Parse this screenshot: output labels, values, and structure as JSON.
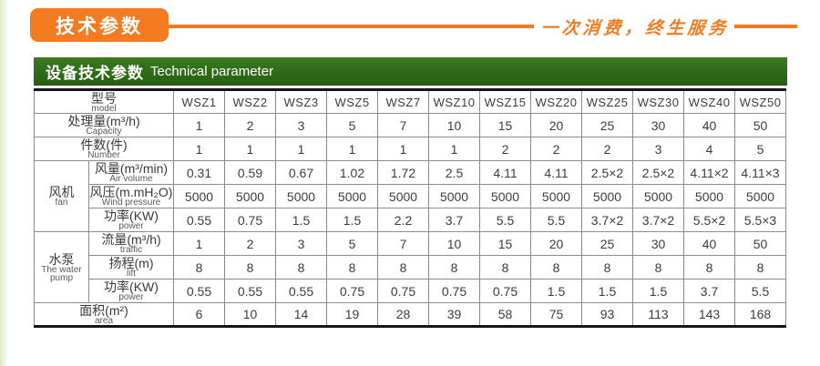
{
  "header": {
    "badge_label": "技术参数",
    "slogan": "一次消费，终生服务"
  },
  "section": {
    "title_zh": "设备技术参数",
    "title_en": "Technical parameter"
  },
  "colors": {
    "accent_orange": "#f47b20",
    "header_green": "#2e6b17",
    "table_frame": "#151515",
    "table_border": "#8c8c8c",
    "text": "#3d3d3d"
  },
  "table": {
    "model_header": {
      "zh": "型号",
      "en": "model"
    },
    "models": [
      "WSZ1",
      "WSZ2",
      "WSZ3",
      "WSZ5",
      "WSZ7",
      "WSZ10",
      "WSZ15",
      "WSZ20",
      "WSZ25",
      "WSZ30",
      "WSZ40",
      "WSZ50"
    ],
    "groups": {
      "fan": {
        "zh": "风机",
        "en": "fan",
        "rowspan": 3
      },
      "pump": {
        "zh": "水泵",
        "en": "The water pump",
        "rowspan": 3
      }
    },
    "rows": [
      {
        "id": "capacity",
        "group": null,
        "zh": "处理量(m³/h)",
        "en": "Capacity",
        "values": [
          "1",
          "2",
          "3",
          "5",
          "7",
          "10",
          "15",
          "20",
          "25",
          "30",
          "40",
          "50"
        ]
      },
      {
        "id": "number",
        "group": null,
        "zh": "件数(件)",
        "en": "Number",
        "values": [
          "1",
          "1",
          "1",
          "1",
          "1",
          "1",
          "2",
          "2",
          "2",
          "3",
          "4",
          "5"
        ]
      },
      {
        "id": "air-volume",
        "group": "fan",
        "zh": "风量(m³/min)",
        "en": "Air volume",
        "values": [
          "0.31",
          "0.59",
          "0.67",
          "1.02",
          "1.72",
          "2.5",
          "4.11",
          "4.11",
          "2.5×2",
          "2.5×2",
          "4.11×2",
          "4.11×3"
        ]
      },
      {
        "id": "wind-pressure",
        "group": "fan",
        "zh": "风压(m.mH₂O)",
        "en": "Wind pressure",
        "values": [
          "5000",
          "5000",
          "5000",
          "5000",
          "5000",
          "5000",
          "5000",
          "5000",
          "5000",
          "5000",
          "5000",
          "5000"
        ]
      },
      {
        "id": "fan-power",
        "group": "fan",
        "zh": "功率(KW)",
        "en": "power",
        "values": [
          "0.55",
          "0.75",
          "1.5",
          "1.5",
          "2.2",
          "3.7",
          "5.5",
          "5.5",
          "3.7×2",
          "3.7×2",
          "5.5×2",
          "5.5×3"
        ]
      },
      {
        "id": "traffic",
        "group": "pump",
        "zh": "流量(m³/h)",
        "en": "traffic",
        "values": [
          "1",
          "2",
          "3",
          "5",
          "7",
          "10",
          "15",
          "20",
          "25",
          "30",
          "40",
          "50"
        ]
      },
      {
        "id": "lift",
        "group": "pump",
        "zh": "扬程(m)",
        "en": "lift",
        "values": [
          "8",
          "8",
          "8",
          "8",
          "8",
          "8",
          "8",
          "8",
          "8",
          "8",
          "8",
          "8"
        ]
      },
      {
        "id": "pump-power",
        "group": "pump",
        "zh": "功率(KW)",
        "en": "power",
        "values": [
          "0.55",
          "0.55",
          "0.55",
          "0.75",
          "0.75",
          "0.75",
          "0.75",
          "1.5",
          "1.5",
          "1.5",
          "3.7",
          "5.5"
        ]
      },
      {
        "id": "area",
        "group": null,
        "zh": "面积(m²)",
        "en": "area",
        "values": [
          "6",
          "10",
          "14",
          "19",
          "28",
          "39",
          "58",
          "75",
          "93",
          "113",
          "143",
          "168"
        ]
      }
    ]
  }
}
